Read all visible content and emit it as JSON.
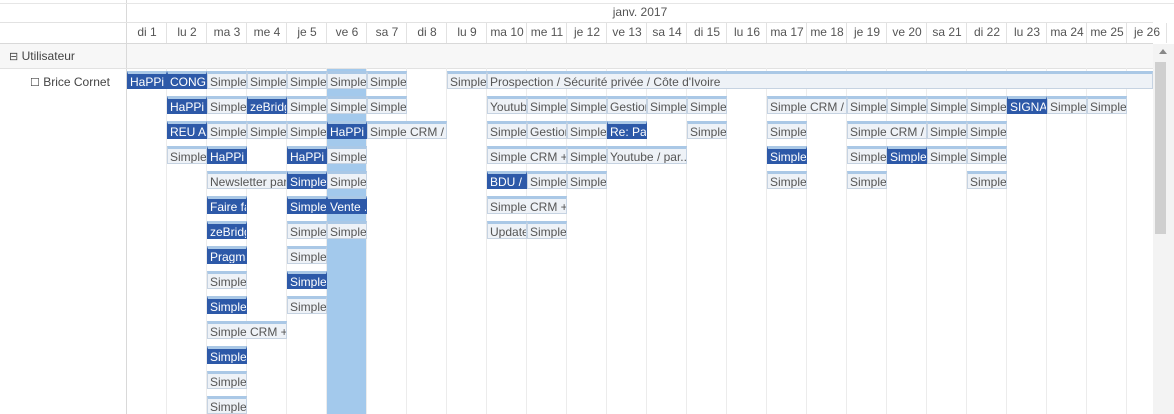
{
  "header": {
    "month": "janv. 2017",
    "days": [
      "di 1",
      "lu 2",
      "ma 3",
      "me 4",
      "je 5",
      "ve 6",
      "sa 7",
      "di 8",
      "lu 9",
      "ma 10",
      "me 11",
      "je 12",
      "ve 13",
      "sa 14",
      "di 15",
      "lu 16",
      "ma 17",
      "me 18",
      "je 19",
      "ve 20",
      "sa 21",
      "di 22",
      "lu 23",
      "ma 24",
      "me 25",
      "je 26"
    ]
  },
  "group": {
    "toggle": "⊟",
    "label": "Utilisateur"
  },
  "user": {
    "toggle": "☐",
    "name": "Brice Cornet"
  },
  "colors": {
    "dark": "#2d59a8",
    "light": "#eef2f7",
    "highlight": "#a3c9ec"
  },
  "events": [
    {
      "day": 0,
      "lane": 0,
      "span": 1,
      "title": "HaPPi ...",
      "dark": true
    },
    {
      "day": 1,
      "lane": 0,
      "span": 1,
      "title": "CONGE",
      "dark": true
    },
    {
      "day": 2,
      "lane": 0,
      "span": 1,
      "title": "Simple"
    },
    {
      "day": 3,
      "lane": 0,
      "span": 1,
      "title": "Simple"
    },
    {
      "day": 4,
      "lane": 0,
      "span": 1,
      "title": "Simple"
    },
    {
      "day": 5,
      "lane": 0,
      "span": 1,
      "title": "Simple"
    },
    {
      "day": 6,
      "lane": 0,
      "span": 1,
      "title": "Simple"
    },
    {
      "day": 8,
      "lane": 0,
      "span": 1,
      "title": "Simple"
    },
    {
      "day": 9,
      "lane": 0,
      "span": 17,
      "title": "Prospection / Sécurité privée / Côte d'Ivoire"
    },
    {
      "day": 1,
      "lane": 1,
      "span": 1,
      "title": "HaPPi ...",
      "dark": true
    },
    {
      "day": 2,
      "lane": 1,
      "span": 1,
      "title": "Simple"
    },
    {
      "day": 3,
      "lane": 1,
      "span": 1,
      "title": "zeBridge",
      "dark": true
    },
    {
      "day": 4,
      "lane": 1,
      "span": 1,
      "title": "Simple"
    },
    {
      "day": 5,
      "lane": 1,
      "span": 1,
      "title": "Simple"
    },
    {
      "day": 6,
      "lane": 1,
      "span": 1,
      "title": "Simple"
    },
    {
      "day": 9,
      "lane": 1,
      "span": 1,
      "title": "Youtube"
    },
    {
      "day": 10,
      "lane": 1,
      "span": 1,
      "title": "Simple"
    },
    {
      "day": 11,
      "lane": 1,
      "span": 1,
      "title": "Simple"
    },
    {
      "day": 12,
      "lane": 1,
      "span": 1,
      "title": "Gestion"
    },
    {
      "day": 13,
      "lane": 1,
      "span": 1,
      "title": "Simple"
    },
    {
      "day": 14,
      "lane": 1,
      "span": 1,
      "title": "Simple"
    },
    {
      "day": 16,
      "lane": 1,
      "span": 2,
      "title": "Simple CRM / ..."
    },
    {
      "day": 18,
      "lane": 1,
      "span": 1,
      "title": "Simple"
    },
    {
      "day": 19,
      "lane": 1,
      "span": 1,
      "title": "Simple"
    },
    {
      "day": 20,
      "lane": 1,
      "span": 1,
      "title": "Simple"
    },
    {
      "day": 21,
      "lane": 1,
      "span": 1,
      "title": "Simple"
    },
    {
      "day": 22,
      "lane": 1,
      "span": 1,
      "title": "SIGNATURE",
      "dark": true
    },
    {
      "day": 23,
      "lane": 1,
      "span": 1,
      "title": "Simple"
    },
    {
      "day": 24,
      "lane": 1,
      "span": 1,
      "title": "Simple"
    },
    {
      "day": 1,
      "lane": 2,
      "span": 1,
      "title": "REU AP",
      "dark": true
    },
    {
      "day": 2,
      "lane": 2,
      "span": 1,
      "title": "Simple"
    },
    {
      "day": 3,
      "lane": 2,
      "span": 1,
      "title": "Simple"
    },
    {
      "day": 4,
      "lane": 2,
      "span": 1,
      "title": "Simple"
    },
    {
      "day": 5,
      "lane": 2,
      "span": 1,
      "title": "HaPPi ...",
      "dark": true
    },
    {
      "day": 6,
      "lane": 2,
      "span": 2,
      "title": "Simple CRM / ..."
    },
    {
      "day": 9,
      "lane": 2,
      "span": 1,
      "title": "Simple"
    },
    {
      "day": 10,
      "lane": 2,
      "span": 1,
      "title": "Gestion"
    },
    {
      "day": 11,
      "lane": 2,
      "span": 1,
      "title": "Simple"
    },
    {
      "day": 12,
      "lane": 2,
      "span": 1,
      "title": "Re: Par",
      "dark": true
    },
    {
      "day": 14,
      "lane": 2,
      "span": 1,
      "title": "Simple"
    },
    {
      "day": 16,
      "lane": 2,
      "span": 1,
      "title": "Simple"
    },
    {
      "day": 18,
      "lane": 2,
      "span": 2,
      "title": "Simple CRM / ..."
    },
    {
      "day": 20,
      "lane": 2,
      "span": 1,
      "title": "Simple"
    },
    {
      "day": 21,
      "lane": 2,
      "span": 1,
      "title": "Simple"
    },
    {
      "day": 1,
      "lane": 3,
      "span": 1,
      "title": "Simple"
    },
    {
      "day": 2,
      "lane": 3,
      "span": 1,
      "title": "HaPPi ...",
      "dark": true
    },
    {
      "day": 4,
      "lane": 3,
      "span": 1,
      "title": "HaPPi ...",
      "dark": true
    },
    {
      "day": 5,
      "lane": 3,
      "span": 1,
      "title": "Simple"
    },
    {
      "day": 9,
      "lane": 3,
      "span": 2,
      "title": "Simple CRM + ..."
    },
    {
      "day": 11,
      "lane": 3,
      "span": 1,
      "title": "Simple"
    },
    {
      "day": 12,
      "lane": 3,
      "span": 2,
      "title": "Youtube / par..."
    },
    {
      "day": 16,
      "lane": 3,
      "span": 1,
      "title": "Simple",
      "dark": true
    },
    {
      "day": 18,
      "lane": 3,
      "span": 1,
      "title": "Simple"
    },
    {
      "day": 19,
      "lane": 3,
      "span": 1,
      "title": "Simple",
      "dark": true
    },
    {
      "day": 20,
      "lane": 3,
      "span": 1,
      "title": "Simple"
    },
    {
      "day": 21,
      "lane": 3,
      "span": 1,
      "title": "Simple"
    },
    {
      "day": 2,
      "lane": 4,
      "span": 2,
      "title": "Newsletter par..."
    },
    {
      "day": 4,
      "lane": 4,
      "span": 1,
      "title": "Simple",
      "dark": true
    },
    {
      "day": 5,
      "lane": 4,
      "span": 1,
      "title": "Simple"
    },
    {
      "day": 9,
      "lane": 4,
      "span": 1,
      "title": "BDU / ...",
      "dark": true
    },
    {
      "day": 10,
      "lane": 4,
      "span": 1,
      "title": "Simple"
    },
    {
      "day": 11,
      "lane": 4,
      "span": 1,
      "title": "Simple"
    },
    {
      "day": 16,
      "lane": 4,
      "span": 1,
      "title": "Simple"
    },
    {
      "day": 18,
      "lane": 4,
      "span": 1,
      "title": "Simple"
    },
    {
      "day": 21,
      "lane": 4,
      "span": 1,
      "title": "Simple"
    },
    {
      "day": 2,
      "lane": 5,
      "span": 1,
      "title": "Faire fa",
      "dark": true
    },
    {
      "day": 4,
      "lane": 5,
      "span": 1,
      "title": "Simple",
      "dark": true
    },
    {
      "day": 5,
      "lane": 5,
      "span": 1,
      "title": "Vente ...",
      "dark": true
    },
    {
      "day": 9,
      "lane": 5,
      "span": 2,
      "title": "Simple CRM + ..."
    },
    {
      "day": 2,
      "lane": 6,
      "span": 1,
      "title": "zeBridge",
      "dark": true
    },
    {
      "day": 4,
      "lane": 6,
      "span": 1,
      "title": "Simple"
    },
    {
      "day": 5,
      "lane": 6,
      "span": 1,
      "title": "Simple"
    },
    {
      "day": 9,
      "lane": 6,
      "span": 1,
      "title": "Update"
    },
    {
      "day": 10,
      "lane": 6,
      "span": 1,
      "title": "Simple"
    },
    {
      "day": 2,
      "lane": 7,
      "span": 1,
      "title": "Pragma",
      "dark": true
    },
    {
      "day": 4,
      "lane": 7,
      "span": 1,
      "title": "Simple"
    },
    {
      "day": 2,
      "lane": 8,
      "span": 1,
      "title": "Simple"
    },
    {
      "day": 4,
      "lane": 8,
      "span": 1,
      "title": "Simple",
      "dark": true
    },
    {
      "day": 2,
      "lane": 9,
      "span": 1,
      "title": "Simple",
      "dark": true
    },
    {
      "day": 4,
      "lane": 9,
      "span": 1,
      "title": "Simple"
    },
    {
      "day": 2,
      "lane": 10,
      "span": 2,
      "title": "Simple CRM + ..."
    },
    {
      "day": 2,
      "lane": 11,
      "span": 1,
      "title": "Simple",
      "dark": true
    },
    {
      "day": 2,
      "lane": 12,
      "span": 1,
      "title": "Simple"
    },
    {
      "day": 2,
      "lane": 13,
      "span": 1,
      "title": "Simple"
    }
  ]
}
